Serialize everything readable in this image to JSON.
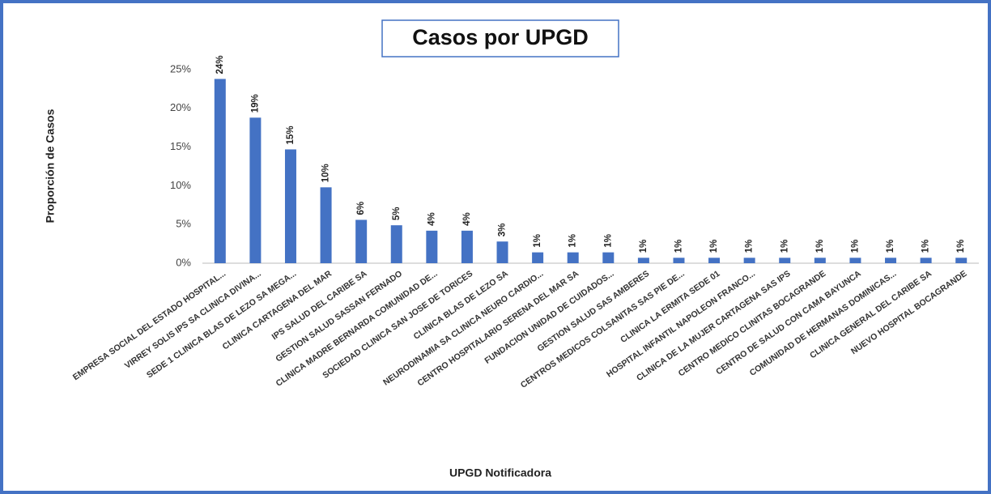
{
  "chart_data": {
    "type": "bar",
    "title": "Casos por UPGD",
    "x_label": "UPGD Notificadora",
    "y_label": "Proporción de Casos",
    "categories": [
      "EMPRESA SOCIAL DEL ESTADO HOSPITAL...",
      "VIRREY  SOLIS IPS SA CLINICA DIVINA...",
      "SEDE 1 CLINICA BLAS DE LEZO  SA  MEGA...",
      "CLINICA  CARTAGENA DEL MAR",
      "IPS SALUD DEL CARIBE SA",
      "GESTION SALUD SASSAN FERNADO",
      "CLINICA MADRE BERNARDA COMUNIDAD DE...",
      "SOCIEDAD CLINICA SAN JOSE DE TORICES",
      "CLINICA  BLAS  DE  LEZO SA",
      "NEURODINAMIA SA CLINICA NEURO CARDIO...",
      "CENTRO HOSPITALARIO SERENA DEL MAR SA",
      "FUNDACION UNIDAD DE CUIDADOS...",
      "GESTION SALUD SAS AMBERES",
      "CENTROS MEDICOS  COLSANITAS  SAS  PIE DE...",
      "CLINICA LA ERMITA SEDE 01",
      "HOSPITAL INFANTIL NAPOLEON FRANCO...",
      "CLINICA DE LA MUJER  CARTAGENA  SAS IPS",
      "CENTRO MEDICO CLINITAS BOCAGRANDE",
      "CENTRO DE SALUD CON CAMA BAYUNCA",
      "COMUNIDAD DE HERMANAS DOMINICAS...",
      "CLINICA GENERAL DEL CARIBE SA",
      "NUEVO HOSPITAL BOCAGRANDE"
    ],
    "values": [
      23.8,
      18.8,
      14.7,
      9.8,
      5.6,
      4.9,
      4.2,
      4.2,
      2.8,
      1.4,
      1.4,
      1.4,
      0.7,
      0.7,
      0.7,
      0.7,
      0.7,
      0.7,
      0.7,
      0.7,
      0.7,
      0.7
    ],
    "value_labels": [
      "24%",
      "19%",
      "15%",
      "10%",
      "6%",
      "5%",
      "4%",
      "4%",
      "3%",
      "1%",
      "1%",
      "1%",
      "1%",
      "1%",
      "1%",
      "1%",
      "1%",
      "1%",
      "1%",
      "1%",
      "1%",
      "1%"
    ],
    "color": "#4472c4",
    "ylim": [
      0,
      25
    ],
    "yticks": [
      {
        "value": 0,
        "label": "0%"
      },
      {
        "value": 5,
        "label": "5%"
      },
      {
        "value": 10,
        "label": "10%"
      },
      {
        "value": 15,
        "label": "15%"
      },
      {
        "value": 20,
        "label": "20%"
      },
      {
        "value": 25,
        "label": "25%"
      }
    ],
    "grid": false
  }
}
